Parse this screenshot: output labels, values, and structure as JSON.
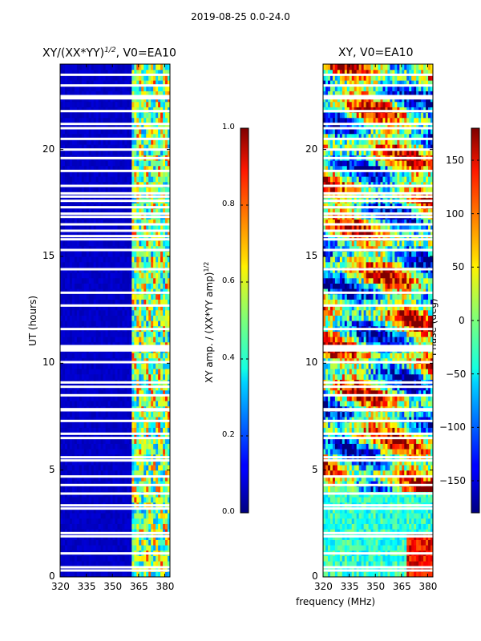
{
  "figure": {
    "suptitle": "2019-08-25 0.0-24.0",
    "xlabel": "frequency (MHz)",
    "ylabel": "UT (hours)"
  },
  "chart_data": [
    {
      "type": "heatmap",
      "title": "XY/(XX*YY)",
      "title_sup": "1/2",
      "title_tail": ", V0=EA10",
      "xlim": [
        320,
        383
      ],
      "ylim": [
        0,
        24
      ],
      "xticks": [
        320,
        335,
        350,
        365,
        380
      ],
      "yticks": [
        0,
        5,
        10,
        15,
        20
      ],
      "colormap": "jet",
      "colorbar": {
        "label": "XY amp. / (XX*YY amp)",
        "label_sup": "1/2",
        "range": [
          0.0,
          1.0
        ],
        "ticks": [
          "0.0",
          "0.2",
          "0.4",
          "0.6",
          "0.8",
          "1.0"
        ]
      },
      "features": {
        "background_value": 0.05,
        "active_band_mhz": [
          361,
          383
        ],
        "active_band_level": 0.45
      }
    },
    {
      "type": "heatmap",
      "title": "XY, V0=EA10",
      "xlim": [
        320,
        383
      ],
      "ylim": [
        0,
        24
      ],
      "xticks": [
        320,
        335,
        350,
        365,
        380
      ],
      "yticks": [
        0,
        5,
        10,
        15,
        20
      ],
      "colormap": "jet",
      "colorbar": {
        "label": "Phase (deg)",
        "range": [
          -180,
          180
        ],
        "ticks": [
          "−150",
          "−100",
          "−50",
          "0",
          "50",
          "100",
          "150"
        ]
      }
    }
  ],
  "data_gaps_hours": [
    0.3,
    0.45,
    1.1,
    1.9,
    2.05,
    3.2,
    3.35,
    3.9,
    4.3,
    4.7,
    5.45,
    5.6,
    6.5,
    6.7,
    7.3,
    7.8,
    7.85,
    8.5,
    8.9,
    9.1,
    10.05,
    10.6,
    10.7,
    10.8,
    11.6,
    12.7,
    13.3,
    14.4,
    15.3,
    15.8,
    15.95,
    16.2,
    16.5,
    16.85,
    17.0,
    17.3,
    17.6,
    17.8,
    17.95,
    18.3,
    19.0,
    19.6,
    20.0,
    20.5,
    21.0,
    21.2,
    21.8,
    22.4,
    22.5,
    23.0,
    23.5
  ]
}
